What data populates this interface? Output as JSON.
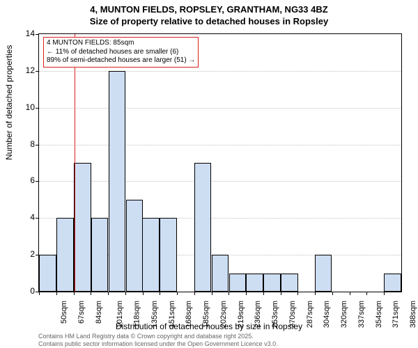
{
  "title_line1": "4, MUNTON FIELDS, ROPSLEY, GRANTHAM, NG33 4BZ",
  "title_line2": "Size of property relative to detached houses in Ropsley",
  "ylabel": "Number of detached properties",
  "xlabel": "Distribution of detached houses by size in Ropsley",
  "footer_line1": "Contains HM Land Registry data © Crown copyright and database right 2025.",
  "footer_line2": "Contains public sector information licensed under the Open Government Licence v3.0.",
  "chart": {
    "type": "histogram",
    "ylim": [
      0,
      14
    ],
    "ytick_step": 2,
    "yticks": [
      0,
      2,
      4,
      6,
      8,
      10,
      12,
      14
    ],
    "x_start": 50,
    "x_step_label": 16.9,
    "x_labels": [
      "50sqm",
      "67sqm",
      "84sqm",
      "101sqm",
      "118sqm",
      "135sqm",
      "151sqm",
      "168sqm",
      "185sqm",
      "202sqm",
      "219sqm",
      "236sqm",
      "253sqm",
      "270sqm",
      "287sqm",
      "304sqm",
      "320sqm",
      "337sqm",
      "354sqm",
      "371sqm",
      "388sqm"
    ],
    "bars": [
      {
        "x": 50,
        "h": 2
      },
      {
        "x": 67,
        "h": 4
      },
      {
        "x": 84,
        "h": 7
      },
      {
        "x": 101,
        "h": 4
      },
      {
        "x": 118,
        "h": 12
      },
      {
        "x": 135,
        "h": 5
      },
      {
        "x": 151,
        "h": 4
      },
      {
        "x": 168,
        "h": 4
      },
      {
        "x": 185,
        "h": 0
      },
      {
        "x": 202,
        "h": 7
      },
      {
        "x": 219,
        "h": 2
      },
      {
        "x": 236,
        "h": 1
      },
      {
        "x": 253,
        "h": 1
      },
      {
        "x": 270,
        "h": 1
      },
      {
        "x": 287,
        "h": 1
      },
      {
        "x": 304,
        "h": 0
      },
      {
        "x": 320,
        "h": 2
      },
      {
        "x": 337,
        "h": 0
      },
      {
        "x": 354,
        "h": 0
      },
      {
        "x": 371,
        "h": 0
      },
      {
        "x": 388,
        "h": 1
      }
    ],
    "bar_color": "#cdddf2",
    "bar_border": "#000000",
    "grid_color": "#bfbfbf",
    "background_color": "#ffffff",
    "marker": {
      "x": 85,
      "color": "#d62020",
      "box_lines": [
        "4 MUNTON FIELDS: 85sqm",
        "← 11% of detached houses are smaller (6)",
        "89% of semi-detached houses are larger (51) →"
      ]
    },
    "label_fontsize": 12,
    "tick_fontsize": 11,
    "title_fontsize": 13
  }
}
